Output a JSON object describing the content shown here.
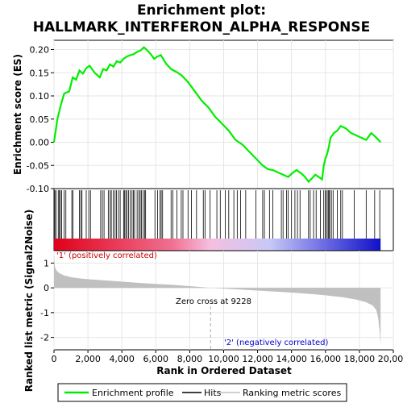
{
  "chart_data": {
    "type": "line",
    "title_line1": "Enrichment plot:",
    "title_line2": "HALLMARK_INTERFERON_ALPHA_RESPONSE",
    "top_panel": {
      "ylabel": "Enrichment score (ES)",
      "ylim": [
        -0.1,
        0.22
      ],
      "yticks": [
        "0.20",
        "0.15",
        "0.10",
        "0.05",
        "0.00",
        "-0.05",
        "-0.10"
      ],
      "ytick_values": [
        0.2,
        0.15,
        0.1,
        0.05,
        0.0,
        -0.05,
        -0.1
      ],
      "series": {
        "name": "Enrichment profile",
        "x": [
          0,
          200,
          400,
          600,
          900,
          1100,
          1300,
          1500,
          1700,
          1900,
          2100,
          2400,
          2700,
          2900,
          3100,
          3300,
          3500,
          3700,
          3900,
          4100,
          4300,
          4500,
          4700,
          4900,
          5100,
          5300,
          5450,
          5700,
          5900,
          6100,
          6300,
          6600,
          6900,
          7200,
          7500,
          7900,
          8300,
          8700,
          9100,
          9500,
          9900,
          10300,
          10700,
          11100,
          11500,
          11900,
          12300,
          12600,
          12900,
          13200,
          13500,
          13800,
          14100,
          14300,
          14600,
          14800,
          15000,
          15200,
          15400,
          15600,
          15800,
          15900,
          16000,
          16100,
          16200,
          16300,
          16500,
          16700,
          16900,
          17200,
          17500,
          17800,
          18100,
          18400,
          18700,
          19000,
          19250
        ],
        "y": [
          0.0,
          0.05,
          0.08,
          0.105,
          0.11,
          0.14,
          0.135,
          0.155,
          0.148,
          0.16,
          0.165,
          0.15,
          0.14,
          0.158,
          0.155,
          0.168,
          0.163,
          0.175,
          0.172,
          0.18,
          0.185,
          0.188,
          0.19,
          0.195,
          0.198,
          0.205,
          0.2,
          0.19,
          0.18,
          0.185,
          0.188,
          0.17,
          0.158,
          0.152,
          0.145,
          0.13,
          0.11,
          0.09,
          0.075,
          0.055,
          0.04,
          0.025,
          0.005,
          -0.005,
          -0.02,
          -0.035,
          -0.05,
          -0.058,
          -0.06,
          -0.065,
          -0.07,
          -0.075,
          -0.065,
          -0.06,
          -0.068,
          -0.075,
          -0.085,
          -0.078,
          -0.07,
          -0.075,
          -0.08,
          -0.05,
          -0.035,
          -0.025,
          -0.01,
          0.01,
          0.02,
          0.025,
          0.035,
          0.03,
          0.02,
          0.015,
          0.01,
          0.005,
          0.02,
          0.01,
          0.0
        ],
        "color": "#00ee00"
      }
    },
    "hits_panel": {
      "hits": [
        50,
        120,
        250,
        310,
        380,
        450,
        600,
        700,
        1050,
        1120,
        1500,
        1580,
        1650,
        1900,
        2050,
        2150,
        2750,
        2850,
        2950,
        3200,
        3300,
        3380,
        3500,
        3600,
        3680,
        3800,
        3900,
        4100,
        4150,
        4230,
        4300,
        4400,
        4500,
        4600,
        4680,
        4750,
        4900,
        5000,
        5080,
        5150,
        5250,
        5350,
        5400,
        5950,
        6100,
        6250,
        6320,
        6400,
        6900,
        7000,
        7250,
        7500,
        7600,
        7900,
        8100,
        8400,
        8800,
        8900,
        9200,
        9600,
        9800,
        10100,
        10300,
        10600,
        10800,
        11000,
        11300,
        11900,
        12300,
        12400,
        12700,
        12900,
        13400,
        13500,
        13700,
        13800,
        14000,
        14200,
        14350,
        14500,
        15000,
        15100,
        15300,
        15450,
        15700,
        15900,
        16000,
        16050,
        16150,
        16200,
        16250,
        16350,
        16450,
        16700,
        16900,
        17000,
        17700,
        18400,
        18900,
        19200
      ],
      "gradient_colors": [
        "#e0001a",
        "#f07090",
        "#f4c0e0",
        "#c8c8f8",
        "#6060e0",
        "#1010c8"
      ]
    },
    "bottom_panel": {
      "ylabel": "Ranked list metric (Signal2Noise)",
      "ylim": [
        -2.5,
        1.5
      ],
      "yticks": [
        "1",
        "0",
        "-1",
        "-2"
      ],
      "ytick_values": [
        1,
        0,
        -1,
        -2
      ],
      "metric_x": [
        0,
        50,
        150,
        300,
        600,
        1000,
        1500,
        2000,
        3000,
        4000,
        5000,
        6000,
        7000,
        8000,
        9228,
        10000,
        11000,
        12000,
        13000,
        14000,
        15000,
        16000,
        17000,
        17800,
        18400,
        18800,
        19000,
        19100,
        19200,
        19250
      ],
      "metric_y": [
        1.3,
        0.85,
        0.7,
        0.6,
        0.5,
        0.43,
        0.38,
        0.35,
        0.3,
        0.25,
        0.2,
        0.16,
        0.12,
        0.07,
        0.0,
        -0.03,
        -0.07,
        -0.11,
        -0.15,
        -0.19,
        -0.24,
        -0.3,
        -0.38,
        -0.47,
        -0.58,
        -0.72,
        -0.9,
        -1.2,
        -1.8,
        -2.35
      ],
      "zero_cross_text": "Zero cross at 9228",
      "zero_cross_x": 9228,
      "pos_label": "'1' (positively correlated)",
      "neg_label": "'2' (negatively correlated)"
    },
    "xlabel": "Rank in Ordered Dataset",
    "xlim": [
      0,
      20000
    ],
    "xticks": [
      "0",
      "2,000",
      "4,000",
      "6,000",
      "8,000",
      "10,000",
      "12,000",
      "14,000",
      "16,000",
      "18,000",
      "20,000"
    ],
    "xtick_values": [
      0,
      2000,
      4000,
      6000,
      8000,
      10000,
      12000,
      14000,
      16000,
      18000,
      20000
    ],
    "legend": {
      "placement": "bottom",
      "items": [
        "Enrichment profile",
        "Hits",
        "Ranking metric scores"
      ]
    }
  }
}
